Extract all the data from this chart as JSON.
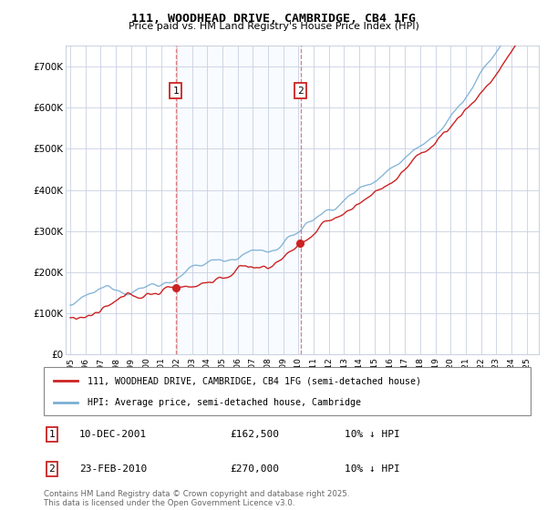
{
  "title": "111, WOODHEAD DRIVE, CAMBRIDGE, CB4 1FG",
  "subtitle": "Price paid vs. HM Land Registry's House Price Index (HPI)",
  "ylim": [
    0,
    750000
  ],
  "yticks": [
    0,
    100000,
    200000,
    300000,
    400000,
    500000,
    600000,
    700000
  ],
  "ytick_labels": [
    "£0",
    "£100K",
    "£200K",
    "£300K",
    "£400K",
    "£500K",
    "£600K",
    "£700K"
  ],
  "hpi_color": "#7bafd4",
  "price_color": "#cc2222",
  "vline_color": "#dd6666",
  "vline1_x": 2001.94,
  "vline2_x": 2010.14,
  "box_color": "#cc2222",
  "sale1_date": "10-DEC-2001",
  "sale1_price": "£162,500",
  "sale1_info": "10% ↓ HPI",
  "sale2_date": "23-FEB-2010",
  "sale2_price": "£270,000",
  "sale2_info": "10% ↓ HPI",
  "legend_line1": "111, WOODHEAD DRIVE, CAMBRIDGE, CB4 1FG (semi-detached house)",
  "legend_line2": "HPI: Average price, semi-detached house, Cambridge",
  "footer": "Contains HM Land Registry data © Crown copyright and database right 2025.\nThis data is licensed under the Open Government Licence v3.0.",
  "background_color": "#ffffff",
  "grid_color": "#c8d0e0",
  "shade_color": "#ddeeff",
  "xlim_left": 1994.7,
  "xlim_right": 2025.8
}
